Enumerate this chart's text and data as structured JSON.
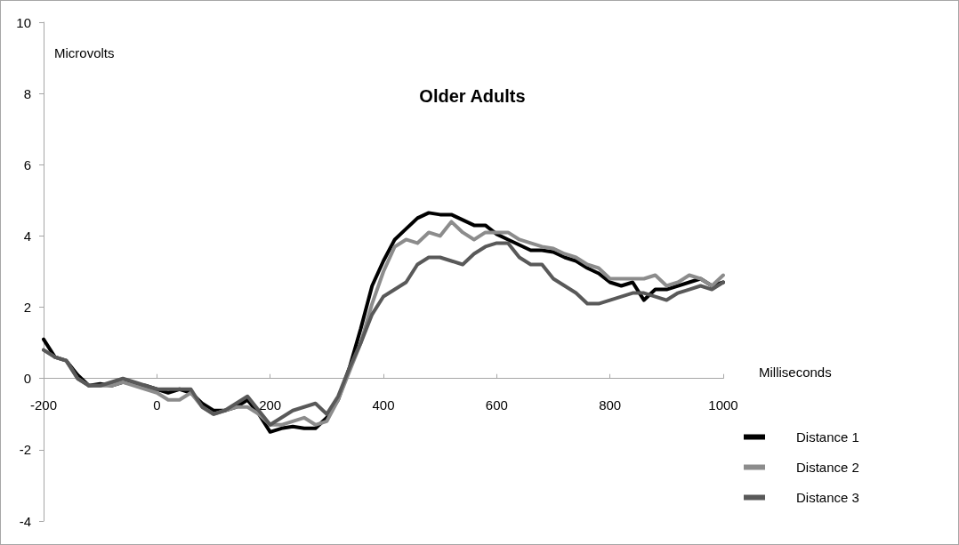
{
  "chart_data": {
    "type": "line",
    "title": "Older Adults",
    "xlabel": "Milliseconds",
    "ylabel": "Microvolts",
    "x": [
      -200,
      -180,
      -160,
      -140,
      -120,
      -100,
      -80,
      -60,
      -40,
      -20,
      0,
      20,
      40,
      60,
      80,
      100,
      120,
      140,
      160,
      180,
      200,
      220,
      240,
      260,
      280,
      300,
      320,
      340,
      360,
      380,
      400,
      420,
      440,
      460,
      480,
      500,
      520,
      540,
      560,
      580,
      600,
      620,
      640,
      660,
      680,
      700,
      720,
      740,
      760,
      780,
      800,
      820,
      840,
      860,
      880,
      900,
      920,
      940,
      960,
      980,
      1000
    ],
    "series": [
      {
        "name": "Distance 1",
        "color": "#000000",
        "values": [
          1.1,
          0.6,
          0.5,
          0.1,
          -0.2,
          -0.15,
          -0.2,
          -0.1,
          -0.15,
          -0.2,
          -0.3,
          -0.4,
          -0.3,
          -0.4,
          -0.7,
          -0.9,
          -0.9,
          -0.8,
          -0.6,
          -1.0,
          -1.5,
          -1.4,
          -1.35,
          -1.4,
          -1.4,
          -1.1,
          -0.6,
          0.3,
          1.4,
          2.6,
          3.3,
          3.9,
          4.2,
          4.5,
          4.65,
          4.6,
          4.6,
          4.45,
          4.3,
          4.3,
          4.05,
          3.9,
          3.75,
          3.6,
          3.6,
          3.55,
          3.4,
          3.3,
          3.1,
          2.95,
          2.7,
          2.6,
          2.7,
          2.2,
          2.5,
          2.5,
          2.6,
          2.7,
          2.8,
          2.6,
          2.7
        ]
      },
      {
        "name": "Distance 2",
        "color": "#8c8c8c",
        "values": [
          0.8,
          0.6,
          0.5,
          0.0,
          -0.2,
          -0.2,
          -0.2,
          -0.1,
          -0.2,
          -0.3,
          -0.4,
          -0.6,
          -0.6,
          -0.4,
          -0.8,
          -1.0,
          -0.9,
          -0.8,
          -0.8,
          -1.0,
          -1.3,
          -1.3,
          -1.2,
          -1.1,
          -1.3,
          -1.2,
          -0.6,
          0.2,
          1.0,
          2.1,
          3.0,
          3.7,
          3.9,
          3.8,
          4.1,
          4.0,
          4.4,
          4.1,
          3.9,
          4.1,
          4.1,
          4.1,
          3.9,
          3.8,
          3.7,
          3.65,
          3.5,
          3.4,
          3.2,
          3.1,
          2.8,
          2.8,
          2.8,
          2.8,
          2.9,
          2.6,
          2.7,
          2.9,
          2.8,
          2.6,
          2.9
        ]
      },
      {
        "name": "Distance 3",
        "color": "#595959",
        "values": [
          0.8,
          0.6,
          0.5,
          0.0,
          -0.2,
          -0.2,
          -0.1,
          0.0,
          -0.1,
          -0.2,
          -0.3,
          -0.3,
          -0.3,
          -0.3,
          -0.8,
          -1.0,
          -0.9,
          -0.7,
          -0.5,
          -0.9,
          -1.3,
          -1.1,
          -0.9,
          -0.8,
          -0.7,
          -1.0,
          -0.5,
          0.3,
          1.0,
          1.8,
          2.3,
          2.5,
          2.7,
          3.2,
          3.4,
          3.4,
          3.3,
          3.2,
          3.5,
          3.7,
          3.8,
          3.8,
          3.4,
          3.2,
          3.2,
          2.8,
          2.6,
          2.4,
          2.1,
          2.1,
          2.2,
          2.3,
          2.4,
          2.4,
          2.3,
          2.2,
          2.4,
          2.5,
          2.6,
          2.5,
          2.7
        ]
      }
    ],
    "xlim": [
      -200,
      1000
    ],
    "xticks": [
      -200,
      0,
      200,
      400,
      600,
      800,
      1000
    ],
    "ylim": [
      -4,
      10
    ],
    "yticks": [
      -4,
      -2,
      0,
      2,
      4,
      6,
      8,
      10
    ],
    "grid": false,
    "legend": "bottom right",
    "marker": "none",
    "line_style": "solid"
  }
}
